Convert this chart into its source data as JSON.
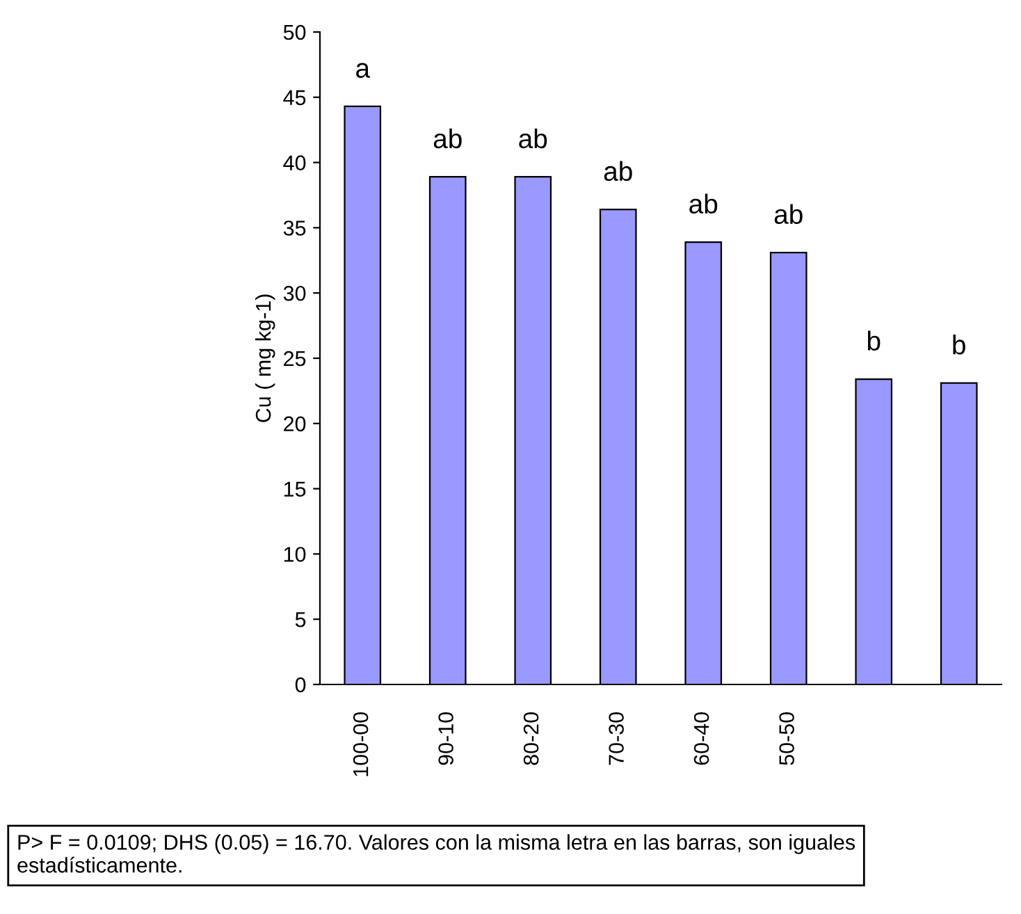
{
  "chart_data": {
    "type": "bar",
    "ylabel": "Cu ( mg kg-1)",
    "categories": [
      "100-00",
      "90-10",
      "80-20",
      "70-30",
      "60-40",
      "50-50",
      null,
      null
    ],
    "values": [
      44.3,
      38.9,
      38.9,
      36.4,
      33.9,
      33.1,
      23.4,
      23.1
    ],
    "value_labels": [
      "a",
      "ab",
      "ab",
      "ab",
      "ab",
      "ab",
      "b",
      "b"
    ],
    "color": "#9999ff",
    "ylim": [
      0,
      50
    ],
    "yticks": [
      0,
      5,
      10,
      15,
      20,
      25,
      30,
      35,
      40,
      45,
      50
    ],
    "grid": false,
    "annotations": [
      "P> F = 0.0109; DHS (0.05) = 16.70. Valores con la misma letra en las barras, son iguales estadísticamente."
    ]
  }
}
